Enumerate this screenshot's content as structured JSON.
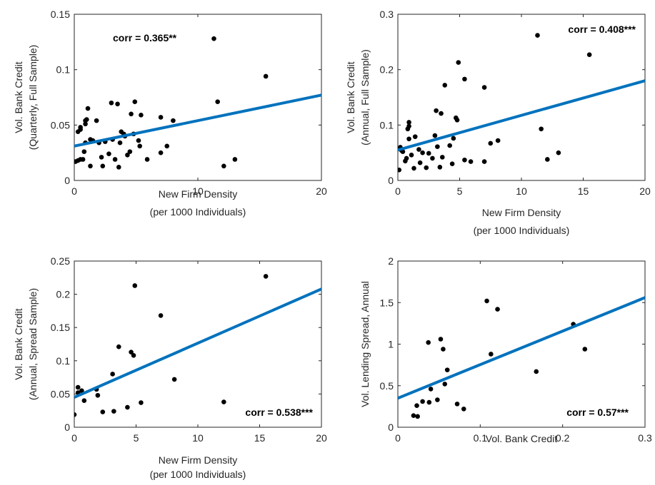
{
  "colors": {
    "fit_line": "#0072BD",
    "points": "#000000",
    "axes": "#262626"
  },
  "chart_data": [
    {
      "type": "scatter",
      "fit_line": {
        "x": [
          0,
          20
        ],
        "y": [
          0.031,
          0.077
        ]
      },
      "annotation": "corr = 0.365**",
      "xlabel": [
        "New Firm Density",
        "(per 1000 Individuals)"
      ],
      "ylabel": [
        "Vol. Bank Credit",
        "(Quarterly, Full Sample)"
      ],
      "xlim": [
        0,
        20
      ],
      "ylim": [
        0,
        0.15
      ],
      "xticks": [
        "0",
        "10",
        "20"
      ],
      "xtick_values": [
        0,
        10,
        20
      ],
      "yticks": [
        "0",
        "0.05",
        "0.1",
        "0.15"
      ],
      "ytick_values": [
        0,
        0.05,
        0.1,
        0.15
      ],
      "grid": false,
      "points": [
        [
          0.1,
          0.017
        ],
        [
          0.3,
          0.018
        ],
        [
          0.5,
          0.019
        ],
        [
          0.7,
          0.019
        ],
        [
          0.3,
          0.044
        ],
        [
          0.5,
          0.046
        ],
        [
          0.5,
          0.048
        ],
        [
          0.8,
          0.026
        ],
        [
          0.9,
          0.034
        ],
        [
          0.9,
          0.051
        ],
        [
          0.9,
          0.054
        ],
        [
          1.0,
          0.055
        ],
        [
          1.1,
          0.065
        ],
        [
          1.3,
          0.037
        ],
        [
          1.3,
          0.013
        ],
        [
          1.5,
          0.036
        ],
        [
          1.8,
          0.054
        ],
        [
          2.0,
          0.034
        ],
        [
          2.2,
          0.021
        ],
        [
          2.3,
          0.013
        ],
        [
          2.5,
          0.035
        ],
        [
          2.8,
          0.024
        ],
        [
          3.0,
          0.07
        ],
        [
          3.1,
          0.037
        ],
        [
          3.3,
          0.019
        ],
        [
          3.5,
          0.069
        ],
        [
          3.6,
          0.012
        ],
        [
          3.7,
          0.034
        ],
        [
          3.8,
          0.044
        ],
        [
          4.0,
          0.042
        ],
        [
          4.1,
          0.04
        ],
        [
          4.3,
          0.023
        ],
        [
          4.5,
          0.026
        ],
        [
          4.6,
          0.06
        ],
        [
          4.8,
          0.042
        ],
        [
          4.9,
          0.071
        ],
        [
          5.2,
          0.036
        ],
        [
          5.3,
          0.031
        ],
        [
          5.4,
          0.059
        ],
        [
          5.9,
          0.019
        ],
        [
          7.0,
          0.057
        ],
        [
          7.0,
          0.025
        ],
        [
          7.5,
          0.031
        ],
        [
          8.0,
          0.054
        ],
        [
          11.3,
          0.128
        ],
        [
          11.6,
          0.071
        ],
        [
          12.1,
          0.013
        ],
        [
          13.0,
          0.019
        ],
        [
          15.5,
          0.094
        ]
      ]
    },
    {
      "type": "scatter",
      "fit_line": {
        "x": [
          0,
          20
        ],
        "y": [
          0.055,
          0.18
        ]
      },
      "annotation": "corr = 0.408***",
      "xlabel": [
        "New Firm Density",
        "(per 1000 Individuals)"
      ],
      "ylabel": [
        "Vol. Bank Credit",
        "(Annual, Full Sample)"
      ],
      "xlim": [
        0,
        20
      ],
      "ylim": [
        0,
        0.3
      ],
      "xticks": [
        "0",
        "5",
        "10",
        "15",
        "20"
      ],
      "xtick_values": [
        0,
        5,
        10,
        15,
        20
      ],
      "yticks": [
        "0",
        "0.1",
        "0.2",
        "0.3"
      ],
      "ytick_values": [
        0,
        0.1,
        0.2,
        0.3
      ],
      "grid": false,
      "points": [
        [
          0.1,
          0.019
        ],
        [
          0.2,
          0.06
        ],
        [
          0.3,
          0.054
        ],
        [
          0.4,
          0.052
        ],
        [
          0.6,
          0.035
        ],
        [
          0.7,
          0.04
        ],
        [
          0.8,
          0.093
        ],
        [
          0.9,
          0.098
        ],
        [
          0.9,
          0.105
        ],
        [
          0.9,
          0.075
        ],
        [
          1.1,
          0.046
        ],
        [
          1.3,
          0.022
        ],
        [
          1.4,
          0.079
        ],
        [
          1.7,
          0.056
        ],
        [
          1.8,
          0.032
        ],
        [
          2.0,
          0.05
        ],
        [
          2.3,
          0.023
        ],
        [
          2.5,
          0.049
        ],
        [
          2.8,
          0.04
        ],
        [
          3.0,
          0.081
        ],
        [
          3.1,
          0.126
        ],
        [
          3.2,
          0.061
        ],
        [
          3.4,
          0.024
        ],
        [
          3.5,
          0.121
        ],
        [
          3.6,
          0.042
        ],
        [
          3.8,
          0.172
        ],
        [
          4.2,
          0.063
        ],
        [
          4.4,
          0.03
        ],
        [
          4.5,
          0.076
        ],
        [
          4.7,
          0.113
        ],
        [
          4.8,
          0.109
        ],
        [
          4.9,
          0.213
        ],
        [
          5.4,
          0.183
        ],
        [
          5.4,
          0.037
        ],
        [
          5.9,
          0.034
        ],
        [
          7.0,
          0.168
        ],
        [
          7.0,
          0.034
        ],
        [
          7.5,
          0.067
        ],
        [
          8.1,
          0.072
        ],
        [
          11.3,
          0.262
        ],
        [
          11.6,
          0.093
        ],
        [
          12.1,
          0.038
        ],
        [
          13.0,
          0.05
        ],
        [
          15.5,
          0.227
        ]
      ]
    },
    {
      "type": "scatter",
      "fit_line": {
        "x": [
          0,
          20
        ],
        "y": [
          0.045,
          0.208
        ]
      },
      "annotation": "corr = 0.538***",
      "xlabel": [
        "New Firm Density",
        "(per 1000 Individuals)"
      ],
      "ylabel": [
        "Vol. Bank Credit",
        "(Annual, Spread Sample)"
      ],
      "xlim": [
        0,
        20
      ],
      "ylim": [
        0,
        0.25
      ],
      "xticks": [
        "0",
        "5",
        "10",
        "15",
        "20"
      ],
      "xtick_values": [
        0,
        5,
        10,
        15,
        20
      ],
      "yticks": [
        "0",
        "0.05",
        "0.1",
        "0.15",
        "0.2",
        "0.25"
      ],
      "ytick_values": [
        0,
        0.05,
        0.1,
        0.15,
        0.2,
        0.25
      ],
      "grid": false,
      "points": [
        [
          0.0,
          0.019
        ],
        [
          0.3,
          0.06
        ],
        [
          0.3,
          0.052
        ],
        [
          0.6,
          0.055
        ],
        [
          0.8,
          0.04
        ],
        [
          1.8,
          0.057
        ],
        [
          1.9,
          0.048
        ],
        [
          2.3,
          0.023
        ],
        [
          3.1,
          0.08
        ],
        [
          3.2,
          0.024
        ],
        [
          3.6,
          0.121
        ],
        [
          4.3,
          0.03
        ],
        [
          4.6,
          0.113
        ],
        [
          4.8,
          0.108
        ],
        [
          4.9,
          0.213
        ],
        [
          5.4,
          0.037
        ],
        [
          7.0,
          0.168
        ],
        [
          8.1,
          0.072
        ],
        [
          12.1,
          0.038
        ],
        [
          15.5,
          0.227
        ]
      ]
    },
    {
      "type": "scatter",
      "fit_line": {
        "x": [
          0,
          0.3
        ],
        "y": [
          0.35,
          1.56
        ]
      },
      "annotation": "corr = 0.57***",
      "xlabel": [
        "Vol. Bank Credit"
      ],
      "ylabel": [
        "Vol. Lending Spread, Annual"
      ],
      "xlim": [
        0,
        0.3
      ],
      "ylim": [
        0,
        2
      ],
      "xticks": [
        "0",
        "0.1",
        "0.2",
        "0.3"
      ],
      "xtick_values": [
        0,
        0.1,
        0.2,
        0.3
      ],
      "yticks": [
        "0",
        "0.5",
        "1",
        "1.5",
        "2"
      ],
      "ytick_values": [
        0,
        0.5,
        1,
        1.5,
        2
      ],
      "grid": false,
      "points": [
        [
          0.019,
          0.14
        ],
        [
          0.023,
          0.26
        ],
        [
          0.024,
          0.13
        ],
        [
          0.03,
          0.31
        ],
        [
          0.037,
          1.02
        ],
        [
          0.038,
          0.3
        ],
        [
          0.04,
          0.46
        ],
        [
          0.048,
          0.33
        ],
        [
          0.052,
          1.06
        ],
        [
          0.055,
          0.94
        ],
        [
          0.057,
          0.52
        ],
        [
          0.06,
          0.69
        ],
        [
          0.072,
          0.28
        ],
        [
          0.08,
          0.22
        ],
        [
          0.108,
          1.52
        ],
        [
          0.113,
          0.88
        ],
        [
          0.121,
          1.42
        ],
        [
          0.168,
          0.67
        ],
        [
          0.213,
          1.24
        ],
        [
          0.227,
          0.94
        ]
      ]
    }
  ]
}
